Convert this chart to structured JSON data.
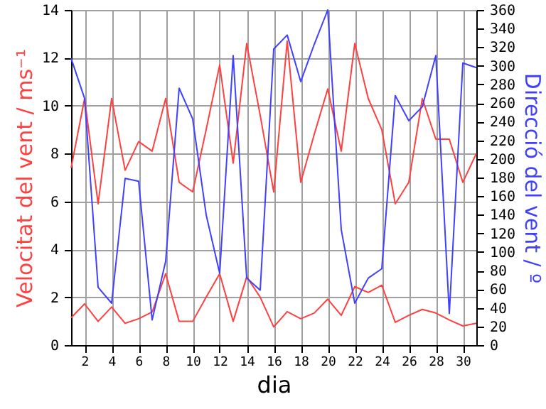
{
  "chart_data": {
    "type": "line",
    "xlabel": "dia",
    "ylabel": "Velocitat del vent / ms⁻¹",
    "y2label": "Direcció del vent / º",
    "x": [
      1,
      2,
      3,
      4,
      5,
      6,
      7,
      8,
      9,
      10,
      11,
      12,
      13,
      14,
      15,
      16,
      17,
      18,
      19,
      20,
      21,
      22,
      23,
      24,
      25,
      26,
      27,
      28,
      29,
      30,
      31
    ],
    "series": [
      {
        "color": "#ff4040",
        "values": [
          7.4,
          10.3,
          5.9,
          10.3,
          7.3,
          8.5,
          8.1,
          10.3,
          6.8,
          6.4,
          9.0,
          11.7,
          7.6,
          12.6,
          9.6,
          6.4,
          12.7,
          6.8,
          8.8,
          10.7,
          8.1,
          12.6,
          10.3,
          9.0,
          5.9,
          6.8,
          10.3,
          8.6,
          8.6,
          6.8,
          8.0
        ]
      },
      {
        "color": "#ff4040",
        "values": [
          1.14,
          1.72,
          0.99,
          1.59,
          0.91,
          1.1,
          1.38,
          2.98,
          0.99,
          0.99,
          2.0,
          2.98,
          0.99,
          2.85,
          2.0,
          0.76,
          1.4,
          1.1,
          1.34,
          1.92,
          1.24,
          2.44,
          2.2,
          2.5,
          0.95,
          1.24,
          1.49,
          1.34,
          1.05,
          0.8,
          0.91
        ]
      },
      {
        "color": "#4040ff",
        "axis": "y2",
        "values": [
          308,
          265,
          62,
          45,
          179,
          176,
          27,
          90,
          276,
          243,
          140,
          77,
          311,
          72,
          59,
          318,
          333,
          283,
          323,
          360,
          124,
          45,
          72,
          82,
          268,
          241,
          256,
          311,
          34,
          303,
          298
        ]
      }
    ],
    "xlim": [
      1,
      31
    ],
    "xticks": [
      2,
      4,
      6,
      8,
      10,
      12,
      14,
      16,
      18,
      20,
      22,
      24,
      26,
      28,
      30
    ],
    "ylim": [
      0,
      14
    ],
    "yticks": [
      0,
      2,
      4,
      6,
      8,
      10,
      12,
      14
    ],
    "y2lim": [
      0,
      360
    ],
    "y2ticks": [
      0,
      20,
      40,
      60,
      80,
      100,
      120,
      140,
      160,
      180,
      200,
      220,
      240,
      260,
      280,
      300,
      320,
      340,
      360
    ],
    "grid": true
  }
}
